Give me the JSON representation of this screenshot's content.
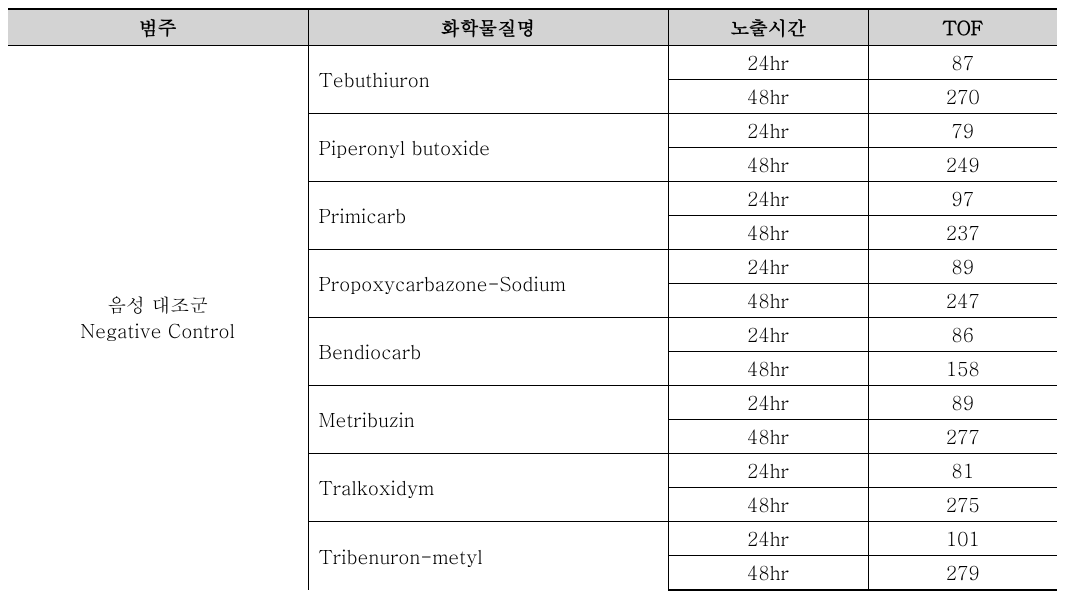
{
  "headers": {
    "category": "범주",
    "chemical": "화학물질명",
    "exposure": "노출시간",
    "tof": "TOF"
  },
  "category": {
    "line1": "음성 대조군",
    "line2": "Negative Control"
  },
  "chemicals": [
    {
      "name": "Tebuthiuron",
      "rows": [
        {
          "exposure": "24hr",
          "tof": "87"
        },
        {
          "exposure": "48hr",
          "tof": "270"
        }
      ]
    },
    {
      "name": "Piperonyl butoxide",
      "rows": [
        {
          "exposure": "24hr",
          "tof": "79"
        },
        {
          "exposure": "48hr",
          "tof": "249"
        }
      ]
    },
    {
      "name": "Primicarb",
      "rows": [
        {
          "exposure": "24hr",
          "tof": "97"
        },
        {
          "exposure": "48hr",
          "tof": "237"
        }
      ]
    },
    {
      "name": "Propoxycarbazone-Sodium",
      "rows": [
        {
          "exposure": "24hr",
          "tof": "89"
        },
        {
          "exposure": "48hr",
          "tof": "247"
        }
      ]
    },
    {
      "name": "Bendiocarb",
      "rows": [
        {
          "exposure": "24hr",
          "tof": "86"
        },
        {
          "exposure": "48hr",
          "tof": "158"
        }
      ]
    },
    {
      "name": "Metribuzin",
      "rows": [
        {
          "exposure": "24hr",
          "tof": "89"
        },
        {
          "exposure": "48hr",
          "tof": "277"
        }
      ]
    },
    {
      "name": "Tralkoxidym",
      "rows": [
        {
          "exposure": "24hr",
          "tof": "81"
        },
        {
          "exposure": "48hr",
          "tof": "275"
        }
      ]
    },
    {
      "name": "Tribenuron-metyl",
      "rows": [
        {
          "exposure": "24hr",
          "tof": "101"
        },
        {
          "exposure": "48hr",
          "tof": "279"
        }
      ]
    }
  ]
}
